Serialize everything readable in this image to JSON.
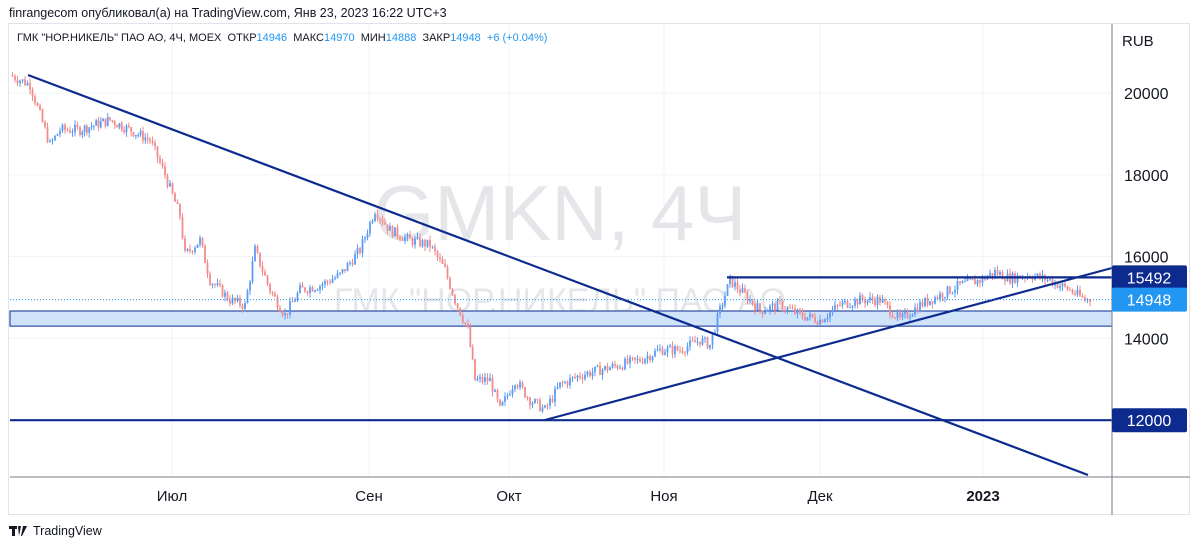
{
  "publish_line": "finrangecom опубликовал(а) на TradingView.com, Янв 23, 2023 16:22 UTC+3",
  "legend": {
    "symbol": "ГМК \"НОР.НИКЕЛЬ\" ПАО АО, 4Ч, MOEX",
    "open_label": "ОТКР",
    "open": "14946",
    "high_label": "МАКС",
    "high": "14970",
    "low_label": "МИН",
    "low": "14888",
    "close_label": "ЗАКР",
    "close": "14948",
    "change": "+6 (+0.04%)"
  },
  "watermark": {
    "ticker": "GMKN, 4Ч",
    "name": "ГМК \"НОР.НИКЕЛЬ\" ПАО АО"
  },
  "footer": {
    "brand": "TradingView"
  },
  "colors": {
    "up": "#5b9cf6",
    "down": "#f28b8b",
    "drawing": "#0d2b8f",
    "last_price": "#2196f3",
    "zone": "#cfe3fb"
  },
  "chart_data": {
    "type": "candlestick",
    "currency": "RUB",
    "y_ticks": [
      20000,
      18000,
      16000,
      14000
    ],
    "x_ticks": [
      "Июл",
      "Сен",
      "Окт",
      "Ноя",
      "Дек",
      "2023"
    ],
    "ylim": [
      10800,
      21300
    ],
    "closes_approx": [
      20440,
      20200,
      18730,
      19100,
      19100,
      19340,
      18850,
      18000,
      17000,
      16040,
      16400,
      15430,
      14940,
      14800,
      16160,
      15180,
      14570,
      15180,
      15300,
      15550,
      16160,
      17140,
      16650,
      16400,
      16280,
      15670,
      14940,
      14200,
      12980,
      12980,
      12250,
      12980,
      12500,
      12250,
      12860,
      13100,
      13230,
      13350,
      13470,
      13720,
      13720,
      13960,
      13840,
      14690,
      15420,
      15060,
      14690,
      14820,
      14570,
      14450,
      14820,
      14940,
      14940,
      14450,
      14820,
      15060,
      15300,
      15420,
      15620,
      15470,
      15550,
      15420,
      15180,
      14940,
      14948
    ],
    "price_labels": [
      {
        "value": "15492",
        "type": "level"
      },
      {
        "value": "14948",
        "type": "last"
      },
      {
        "value": "12000",
        "type": "level"
      }
    ],
    "horizontal_levels": [
      12000,
      15492
    ],
    "support_zone": [
      14300,
      14670
    ]
  }
}
